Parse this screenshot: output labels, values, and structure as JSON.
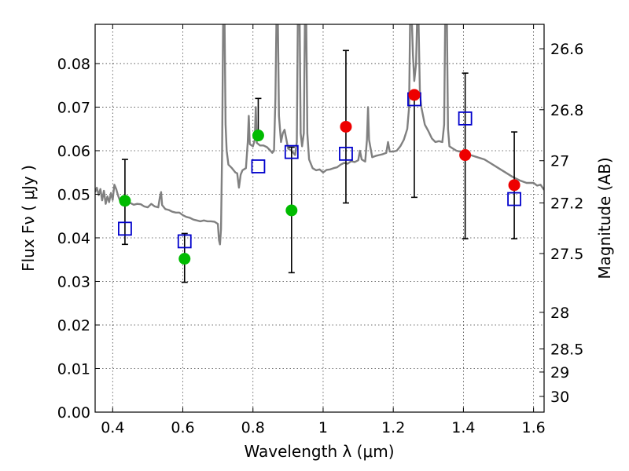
{
  "chart_data": {
    "type": "scatter",
    "title": "",
    "xlabel": "Wavelength  λ (μm)",
    "ylabel": "Flux  Fν  ( μJy )",
    "ylabel_right": "Magnitude (AB)",
    "xlim": [
      0.35,
      1.63
    ],
    "ylim": [
      0.0,
      0.089
    ],
    "grid": true,
    "x_ticks": [
      0.4,
      0.6,
      0.8,
      1.0,
      1.2,
      1.4,
      1.6
    ],
    "x_tick_labels": [
      "0.4",
      "0.6",
      "0.8",
      "1",
      "1.2",
      "1.4",
      "1.6"
    ],
    "y_ticks": [
      0.0,
      0.01,
      0.02,
      0.03,
      0.04,
      0.05,
      0.06,
      0.07,
      0.08
    ],
    "y_tick_labels": [
      "0.00",
      "0.01",
      "0.02",
      "0.03",
      "0.04",
      "0.05",
      "0.06",
      "0.07",
      "0.08"
    ],
    "right_ticks": [
      {
        "label": "26.6",
        "flux": 0.0834
      },
      {
        "label": "26.8",
        "flux": 0.0694
      },
      {
        "label": "27",
        "flux": 0.0577
      },
      {
        "label": "27.2",
        "flux": 0.048
      },
      {
        "label": "27.5",
        "flux": 0.0364
      },
      {
        "label": "28",
        "flux": 0.0229
      },
      {
        "label": "28.5",
        "flux": 0.0145
      },
      {
        "label": "29",
        "flux": 0.0092
      },
      {
        "label": "30",
        "flux": 0.0036
      }
    ],
    "series": [
      {
        "role": "model-spectrum",
        "color": "#808080",
        "points": [
          [
            0.35,
            0.0505
          ],
          [
            0.355,
            0.0515
          ],
          [
            0.36,
            0.0498
          ],
          [
            0.365,
            0.0512
          ],
          [
            0.37,
            0.0486
          ],
          [
            0.375,
            0.0508
          ],
          [
            0.38,
            0.0478
          ],
          [
            0.385,
            0.0495
          ],
          [
            0.39,
            0.0482
          ],
          [
            0.395,
            0.0503
          ],
          [
            0.4,
            0.0487
          ],
          [
            0.405,
            0.0522
          ],
          [
            0.41,
            0.0512
          ],
          [
            0.415,
            0.0498
          ],
          [
            0.42,
            0.0487
          ],
          [
            0.425,
            0.048
          ],
          [
            0.43,
            0.0478
          ],
          [
            0.44,
            0.0482
          ],
          [
            0.45,
            0.048
          ],
          [
            0.46,
            0.0476
          ],
          [
            0.47,
            0.0478
          ],
          [
            0.48,
            0.0477
          ],
          [
            0.49,
            0.0472
          ],
          [
            0.5,
            0.047
          ],
          [
            0.51,
            0.0478
          ],
          [
            0.52,
            0.0472
          ],
          [
            0.53,
            0.047
          ],
          [
            0.535,
            0.0495
          ],
          [
            0.538,
            0.0505
          ],
          [
            0.541,
            0.0475
          ],
          [
            0.55,
            0.0466
          ],
          [
            0.56,
            0.0464
          ],
          [
            0.57,
            0.046
          ],
          [
            0.58,
            0.0458
          ],
          [
            0.59,
            0.0458
          ],
          [
            0.6,
            0.0452
          ],
          [
            0.61,
            0.0448
          ],
          [
            0.62,
            0.0446
          ],
          [
            0.63,
            0.0442
          ],
          [
            0.64,
            0.044
          ],
          [
            0.65,
            0.0438
          ],
          [
            0.66,
            0.044
          ],
          [
            0.67,
            0.0438
          ],
          [
            0.68,
            0.0438
          ],
          [
            0.69,
            0.0437
          ],
          [
            0.7,
            0.0432
          ],
          [
            0.703,
            0.0395
          ],
          [
            0.706,
            0.0385
          ],
          [
            0.709,
            0.042
          ],
          [
            0.712,
            0.06
          ],
          [
            0.715,
            0.09
          ],
          [
            0.719,
            0.09
          ],
          [
            0.722,
            0.066
          ],
          [
            0.725,
            0.06
          ],
          [
            0.73,
            0.0568
          ],
          [
            0.74,
            0.056
          ],
          [
            0.75,
            0.055
          ],
          [
            0.755,
            0.0548
          ],
          [
            0.76,
            0.0515
          ],
          [
            0.765,
            0.0545
          ],
          [
            0.77,
            0.0555
          ],
          [
            0.78,
            0.056
          ],
          [
            0.785,
            0.062
          ],
          [
            0.788,
            0.068
          ],
          [
            0.791,
            0.0615
          ],
          [
            0.8,
            0.061
          ],
          [
            0.805,
            0.0625
          ],
          [
            0.808,
            0.07
          ],
          [
            0.811,
            0.0618
          ],
          [
            0.82,
            0.0612
          ],
          [
            0.83,
            0.0612
          ],
          [
            0.84,
            0.0608
          ],
          [
            0.85,
            0.06
          ],
          [
            0.855,
            0.0595
          ],
          [
            0.86,
            0.06
          ],
          [
            0.864,
            0.072
          ],
          [
            0.867,
            0.09
          ],
          [
            0.871,
            0.09
          ],
          [
            0.874,
            0.068
          ],
          [
            0.88,
            0.062
          ],
          [
            0.885,
            0.064
          ],
          [
            0.89,
            0.0648
          ],
          [
            0.9,
            0.0605
          ],
          [
            0.91,
            0.06
          ],
          [
            0.92,
            0.059
          ],
          [
            0.925,
            0.062
          ],
          [
            0.928,
            0.09
          ],
          [
            0.933,
            0.09
          ],
          [
            0.936,
            0.064
          ],
          [
            0.94,
            0.061
          ],
          [
            0.945,
            0.064
          ],
          [
            0.948,
            0.09
          ],
          [
            0.952,
            0.09
          ],
          [
            0.955,
            0.064
          ],
          [
            0.96,
            0.058
          ],
          [
            0.97,
            0.056
          ],
          [
            0.98,
            0.0555
          ],
          [
            0.99,
            0.0557
          ],
          [
            1.0,
            0.055
          ],
          [
            1.01,
            0.0556
          ],
          [
            1.02,
            0.0557
          ],
          [
            1.03,
            0.056
          ],
          [
            1.04,
            0.0562
          ],
          [
            1.05,
            0.0568
          ],
          [
            1.06,
            0.0572
          ],
          [
            1.07,
            0.057
          ],
          [
            1.08,
            0.0576
          ],
          [
            1.09,
            0.0574
          ],
          [
            1.1,
            0.0578
          ],
          [
            1.105,
            0.06
          ],
          [
            1.11,
            0.058
          ],
          [
            1.12,
            0.0575
          ],
          [
            1.125,
            0.0625
          ],
          [
            1.128,
            0.07
          ],
          [
            1.131,
            0.0625
          ],
          [
            1.14,
            0.0585
          ],
          [
            1.15,
            0.0588
          ],
          [
            1.16,
            0.059
          ],
          [
            1.17,
            0.0592
          ],
          [
            1.18,
            0.0595
          ],
          [
            1.185,
            0.062
          ],
          [
            1.19,
            0.0598
          ],
          [
            1.2,
            0.0598
          ],
          [
            1.21,
            0.06
          ],
          [
            1.22,
            0.061
          ],
          [
            1.23,
            0.0625
          ],
          [
            1.24,
            0.065
          ],
          [
            1.245,
            0.07
          ],
          [
            1.248,
            0.09
          ],
          [
            1.253,
            0.09
          ],
          [
            1.256,
            0.082
          ],
          [
            1.26,
            0.076
          ],
          [
            1.265,
            0.08
          ],
          [
            1.268,
            0.09
          ],
          [
            1.272,
            0.09
          ],
          [
            1.276,
            0.073
          ],
          [
            1.28,
            0.07
          ],
          [
            1.285,
            0.068
          ],
          [
            1.29,
            0.066
          ],
          [
            1.3,
            0.0645
          ],
          [
            1.31,
            0.0628
          ],
          [
            1.32,
            0.062
          ],
          [
            1.33,
            0.0622
          ],
          [
            1.34,
            0.062
          ],
          [
            1.345,
            0.066
          ],
          [
            1.348,
            0.09
          ],
          [
            1.353,
            0.09
          ],
          [
            1.356,
            0.065
          ],
          [
            1.36,
            0.061
          ],
          [
            1.37,
            0.0605
          ],
          [
            1.38,
            0.06
          ],
          [
            1.39,
            0.0598
          ],
          [
            1.4,
            0.0595
          ],
          [
            1.42,
            0.059
          ],
          [
            1.44,
            0.0585
          ],
          [
            1.46,
            0.058
          ],
          [
            1.48,
            0.057
          ],
          [
            1.5,
            0.056
          ],
          [
            1.52,
            0.055
          ],
          [
            1.54,
            0.054
          ],
          [
            1.56,
            0.0532
          ],
          [
            1.58,
            0.0526
          ],
          [
            1.6,
            0.0526
          ],
          [
            1.61,
            0.052
          ],
          [
            1.62,
            0.0522
          ],
          [
            1.63,
            0.051
          ]
        ]
      },
      {
        "role": "observed-green",
        "color": "#00bb00",
        "points": [
          {
            "x": 0.435,
            "y": 0.0485,
            "ylo": 0.0385,
            "yhi": 0.058
          },
          {
            "x": 0.605,
            "y": 0.0352,
            "ylo": 0.0298,
            "yhi": 0.041
          },
          {
            "x": 0.815,
            "y": 0.0635,
            "ylo": 0.0635,
            "yhi": 0.072
          },
          {
            "x": 0.91,
            "y": 0.0463,
            "ylo": 0.032,
            "yhi": 0.0608
          }
        ]
      },
      {
        "role": "observed-red",
        "color": "#ee0000",
        "points": [
          {
            "x": 1.065,
            "y": 0.0655,
            "ylo": 0.048,
            "yhi": 0.083
          },
          {
            "x": 1.26,
            "y": 0.0728,
            "ylo": 0.0493,
            "yhi": 0.0728
          },
          {
            "x": 1.405,
            "y": 0.059,
            "ylo": 0.0398,
            "yhi": 0.0778
          },
          {
            "x": 1.545,
            "y": 0.0521,
            "ylo": 0.0398,
            "yhi": 0.0643
          }
        ]
      },
      {
        "role": "model-photometry",
        "color": "#0000cc",
        "points": [
          {
            "x": 0.435,
            "y": 0.0421
          },
          {
            "x": 0.605,
            "y": 0.0392
          },
          {
            "x": 0.815,
            "y": 0.0564
          },
          {
            "x": 0.91,
            "y": 0.0597
          },
          {
            "x": 1.065,
            "y": 0.0593
          },
          {
            "x": 1.26,
            "y": 0.0718
          },
          {
            "x": 1.405,
            "y": 0.0674
          },
          {
            "x": 1.545,
            "y": 0.0489
          }
        ]
      }
    ]
  }
}
